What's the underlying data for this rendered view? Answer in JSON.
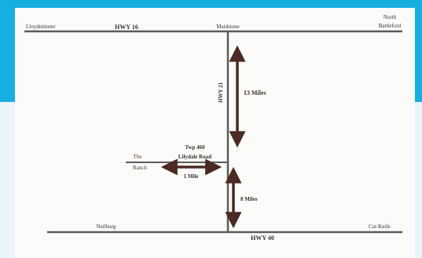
{
  "colors": {
    "accent_band": "#17aee2",
    "panel_bg": "#e9f4fb",
    "map_paper": "#fbfcfa",
    "road": "#5a5a5a",
    "arrow": "#4a2a22",
    "label_text": "#3a2e2a",
    "ranch_text": "#5a2e22"
  },
  "map": {
    "towns": {
      "lloydminster": "Lloydminster",
      "maidstone": "Maidstone",
      "north_battleford_line1": "North",
      "north_battleford_line2": "Battleford",
      "neilburg": "Neilburg",
      "cut_knife": "Cut Knife"
    },
    "highways": {
      "hwy16": "HWY 16",
      "hwy21": "HWY 21",
      "hwy40": "HWY 40"
    },
    "road_label": {
      "line1": "Twp 460",
      "line2": "Lilydale Road"
    },
    "ranch": {
      "line1": "The",
      "line2": "Ranch"
    },
    "distances": {
      "north": "13 Miles",
      "south": "8 Miles",
      "west": "1 Mile"
    }
  }
}
